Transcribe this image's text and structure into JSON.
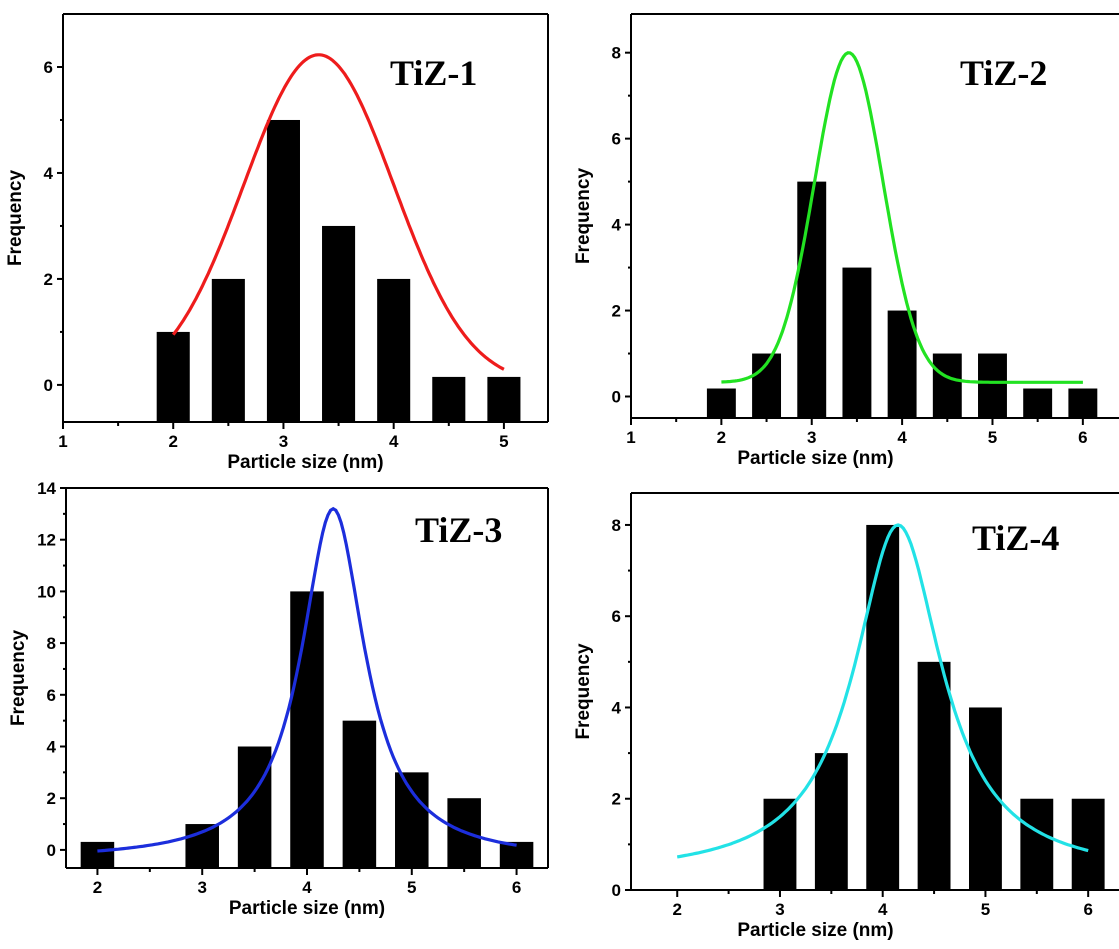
{
  "chart_data": [
    {
      "type": "bar",
      "title": "TiZ-1",
      "xlabel": "Particle size (nm)",
      "ylabel": "Frequency",
      "xlim": [
        1,
        5.4
      ],
      "ylim": [
        -0.7,
        7.0
      ],
      "xticks": [
        1,
        2,
        3,
        4,
        5
      ],
      "yticks": [
        0,
        2,
        4,
        6
      ],
      "bar_width": 0.3,
      "x": [
        2.0,
        2.5,
        3.0,
        3.5,
        4.0,
        4.5,
        5.0
      ],
      "values": [
        1,
        2,
        5,
        3,
        2,
        0,
        0
      ],
      "fit": {
        "type": "gaussian",
        "color": "#ee1c1c",
        "x_range": [
          2.0,
          5.0
        ],
        "y0": 0.0,
        "A": 6.23,
        "xc": 3.32,
        "w": 0.68
      }
    },
    {
      "type": "bar",
      "title": "TiZ-2",
      "xlabel": "Particle size (nm)",
      "ylabel": "Frequency",
      "xlim": [
        1,
        6.4
      ],
      "ylim": [
        -0.5,
        8.9
      ],
      "xticks": [
        1,
        2,
        3,
        4,
        5,
        6
      ],
      "yticks": [
        0,
        2,
        4,
        6,
        8
      ],
      "bar_width": 0.32,
      "x": [
        2.0,
        2.5,
        3.0,
        3.5,
        4.0,
        4.5,
        5.0,
        5.5,
        6.0
      ],
      "values": [
        0,
        1,
        5,
        3,
        2,
        1,
        1,
        0,
        0
      ],
      "fit": {
        "type": "gaussian",
        "color": "#22e222",
        "x_range": [
          2.0,
          6.0
        ],
        "y0": 0.33,
        "A": 7.67,
        "xc": 3.41,
        "w": 0.38
      }
    },
    {
      "type": "bar",
      "title": "TiZ-3",
      "xlabel": "Particle size (nm)",
      "ylabel": "Frequency",
      "xlim": [
        1.7,
        6.3
      ],
      "ylim": [
        -0.7,
        14.0
      ],
      "xticks": [
        2,
        3,
        4,
        5,
        6
      ],
      "yticks": [
        0,
        2,
        4,
        6,
        8,
        10,
        12,
        14
      ],
      "bar_width": 0.32,
      "x": [
        2.0,
        3.0,
        3.5,
        4.0,
        4.5,
        5.0,
        5.5,
        6.0
      ],
      "values": [
        0,
        1,
        4,
        10,
        5,
        3,
        2,
        0
      ],
      "fit": {
        "type": "lorentzian",
        "color": "#1c2edc",
        "x_range": [
          2.0,
          6.0
        ],
        "y0": -0.4,
        "A": 13.6,
        "xc": 4.25,
        "hw": 0.37
      }
    },
    {
      "type": "bar",
      "title": "TiZ-4",
      "xlabel": "Particle size (nm)",
      "ylabel": "Frequency",
      "xlim": [
        1.55,
        6.3
      ],
      "ylim": [
        0,
        8.7
      ],
      "xticks": [
        2,
        3,
        4,
        5,
        6
      ],
      "yticks": [
        0,
        2,
        4,
        6,
        8
      ],
      "bar_width": 0.32,
      "x": [
        3.0,
        3.5,
        4.0,
        4.5,
        5.0,
        5.5,
        6.0
      ],
      "values": [
        2,
        3,
        8,
        5,
        4,
        2,
        2
      ],
      "fit": {
        "type": "lorentzian",
        "color": "#22e2e6",
        "x_range": [
          2.0,
          6.0
        ],
        "y0": 0.3,
        "A": 7.7,
        "xc": 4.15,
        "hw": 0.52
      }
    }
  ]
}
